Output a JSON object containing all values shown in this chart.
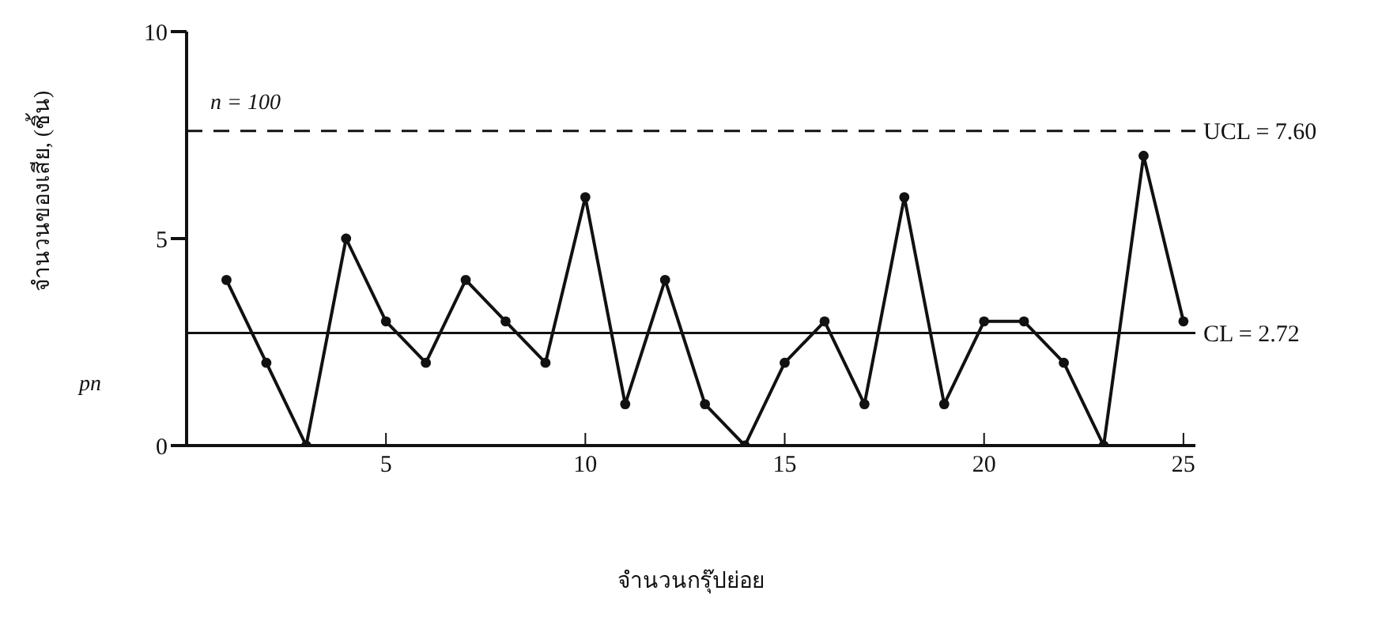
{
  "chart_data": {
    "type": "line",
    "xlabel": "จำนวนกรุ๊ปย่อย",
    "ylabel": "จำนวนของเสีย, (ชิ้น)",
    "annotations": [
      "n = 100",
      "pn"
    ],
    "x": [
      1,
      2,
      3,
      4,
      5,
      6,
      7,
      8,
      9,
      10,
      11,
      12,
      13,
      14,
      15,
      16,
      17,
      18,
      19,
      20,
      21,
      22,
      23,
      24,
      25
    ],
    "series": [
      {
        "color": "#111111",
        "values": [
          4,
          2,
          0,
          5,
          3,
          2,
          4,
          3,
          2,
          6,
          1,
          4,
          1,
          0,
          2,
          3,
          1,
          6,
          1,
          3,
          3,
          2,
          0,
          7,
          3
        ]
      }
    ],
    "xlim": [
      0,
      25.3
    ],
    "xticks": [
      5,
      10,
      15,
      20,
      25
    ],
    "ylim": [
      0,
      10
    ],
    "yticks": [
      0,
      5,
      10
    ],
    "ref_lines": [
      {
        "axis": "y",
        "value": 7.6,
        "label": "UCL = 7.60",
        "line_style": "dashed",
        "color": "#111111"
      },
      {
        "axis": "y",
        "value": 2.72,
        "label": "CL = 2.72",
        "line_style": "solid",
        "color": "#111111"
      }
    ],
    "grid": false,
    "legend": false,
    "marker": "circle",
    "line_style": "solid"
  }
}
